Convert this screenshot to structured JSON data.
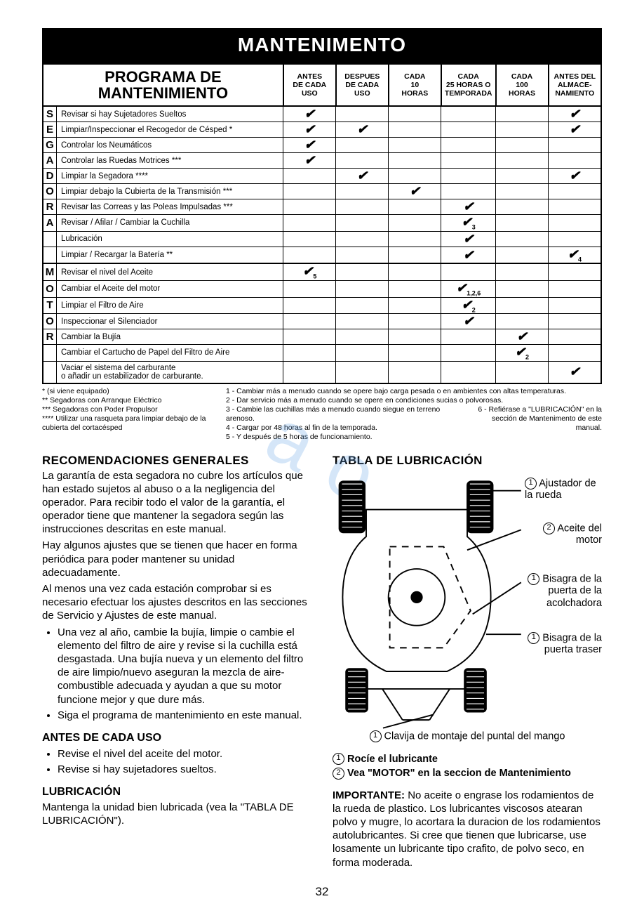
{
  "banner": "MANTENIMENTO",
  "table_title_l1": "PROGRAMA DE",
  "table_title_l2": "MANTENIMIENTO",
  "columns": [
    "ANTES\nDE CADA\nUSO",
    "DESPUES\nDE CADA\nUSO",
    "CADA\n10\nHORAS",
    "CADA\n25 HORAS O\nTEMPORADA",
    "CADA\n100\nHORAS",
    "ANTES DEL\nALMACE-\nNAMIENTO"
  ],
  "side1": "SEGADORA",
  "side2": "MOTOR",
  "rows1": [
    {
      "t": "Revisar si hay Sujetadores Sueltos",
      "c": [
        "✔",
        "",
        "",
        "",
        "",
        "✔"
      ]
    },
    {
      "t": "Limpiar/Inspeccionar el Recogedor de Césped *",
      "c": [
        "✔",
        "✔",
        "",
        "",
        "",
        "✔"
      ]
    },
    {
      "t": "Controlar los Neumáticos",
      "c": [
        "✔",
        "",
        "",
        "",
        "",
        ""
      ]
    },
    {
      "t": "Controlar las Ruedas Motrices ***",
      "c": [
        "✔",
        "",
        "",
        "",
        "",
        ""
      ]
    },
    {
      "t": "Limpiar la Segadora ****",
      "c": [
        "",
        "✔",
        "",
        "",
        "",
        "✔"
      ]
    },
    {
      "t": "Limpiar debajo la Cubierta de la Transmisión ***",
      "c": [
        "",
        "",
        "✔",
        "",
        "",
        ""
      ]
    },
    {
      "t": "Revisar las Correas y las Poleas Impulsadas ***",
      "c": [
        "",
        "",
        "",
        "✔",
        "",
        ""
      ]
    },
    {
      "t": "Revisar / Afilar / Cambiar la Cuchilla",
      "c": [
        "",
        "",
        "",
        "✔3",
        "",
        ""
      ]
    },
    {
      "t": "Lubricación",
      "c": [
        "",
        "",
        "",
        "✔",
        "",
        ""
      ]
    },
    {
      "t": "Limpiar / Recargar la Batería **",
      "c": [
        "",
        "",
        "",
        "✔",
        "",
        "✔4"
      ]
    }
  ],
  "rows2": [
    {
      "t": "Revisar el nivel del Aceite",
      "c": [
        "✔5",
        "",
        "",
        "",
        "",
        ""
      ]
    },
    {
      "t": "Cambiar el Aceite del motor",
      "c": [
        "",
        "",
        "",
        "✔1,2,6",
        "",
        ""
      ]
    },
    {
      "t": "Limpiar el Filtro de Aire",
      "c": [
        "",
        "",
        "",
        "✔2",
        "",
        ""
      ]
    },
    {
      "t": "Inspeccionar el Silenciador",
      "c": [
        "",
        "",
        "",
        "✔",
        "",
        ""
      ]
    },
    {
      "t": "Cambiar la Bujía",
      "c": [
        "",
        "",
        "",
        "",
        "✔",
        ""
      ]
    },
    {
      "t": "Cambiar el Cartucho de Papel del Filtro de Aire",
      "c": [
        "",
        "",
        "",
        "",
        "✔2",
        ""
      ]
    },
    {
      "t": "Vaciar el sistema del carburante\no añadir un estabilizador de carburante.",
      "c": [
        "",
        "",
        "",
        "",
        "",
        "✔"
      ]
    }
  ],
  "footL": [
    "* (si viene equipado)",
    "** Segadoras con Arranque Eléctrico",
    "*** Segadoras con Poder Propulsor",
    "**** Utilizar una rasqueta para limpiar debajo de la cubierta del cortacésped"
  ],
  "footR": [
    "1 - Cambiar más a menudo cuando se opere bajo carga pesada o en ambientes con altas temperaturas.",
    "2 - Dar servicio más a menudo cuando se opere en condiciones sucias o polvorosas.",
    "3 - Cambie las cuchillas más a menudo cuando siegue en terreno arenoso.",
    "4 - Cargar por 48 horas al fin de la temporada.",
    "5 - Y después de 5 horas de funcionamiento."
  ],
  "footRright": "6 - Refiérase a \"LUBRICACIÓN\" en la sección de Mantenimento de este manual.",
  "recs_h": "RECOMENDACIONES GENERALES",
  "recs_p1": "La garantía de esta segadora no cubre los artículos que han estado sujetos al abuso o a la negligencia del operador. Para recibir todo el valor de la garantía, el operador tiene que mantener la segadora según las instrucciones descritas en este manual.",
  "recs_p2": "Hay algunos ajustes que se tienen que hacer en forma periódica para poder mantener su unidad adecuadamente.",
  "recs_p3": "Al menos una vez cada estación comprobar si es necesario efectuar los ajustes descritos en las secciones de Servicio y Ajustes de este manual.",
  "recs_li1": "Una vez al año, cambie la bujía, limpie o cambie el elemento del filtro de aire y revise si la cuchilla está desgastada. Una bujía nueva y un elemento del filtro de aire limpio/nuevo aseguran la mezcla de aire-combustible adecuada y ayudan a que su motor funcione mejor y que dure más.",
  "recs_li2": "Siga el programa de mantenimiento en este manual.",
  "before_h": "ANTES DE CADA USO",
  "before_li1": "Revise el nivel del aceite del motor.",
  "before_li2": "Revise si hay sujetadores sueltos.",
  "lube_h": "LUBRICACIÓN",
  "lube_p": "Mantenga la unidad bien lubricada (vea la \"TABLA DE LUBRICACIÓN\").",
  "lube_table_h": "TABLA DE LUBRICACIÓN",
  "lbl1": "Ajustador de la rueda",
  "lbl2": "Aceite del motor",
  "lbl3": "Bisagra de la puerta de la acolchadora",
  "lbl4": "Bisagra de la puerta traser",
  "lbl5": "Clavija de montaje del puntal del mango",
  "legend1": "Rocíe el lubricante",
  "legend2": "Vea \"MOTOR\" en la seccion de Mantenimiento",
  "imp_h": "IMPORTANTE:",
  "imp_p": "No aceite o engrase los rodamientos de la rueda de plastico. Los lubricantes viscosos atearan polvo y mugre, lo acortara la duracion de los rodamientos autolubricantes. Si cree que tienen que lubricarse, use losamente un lubricante tipo crafito, de polvo seco, en forma moderada.",
  "page": "32"
}
